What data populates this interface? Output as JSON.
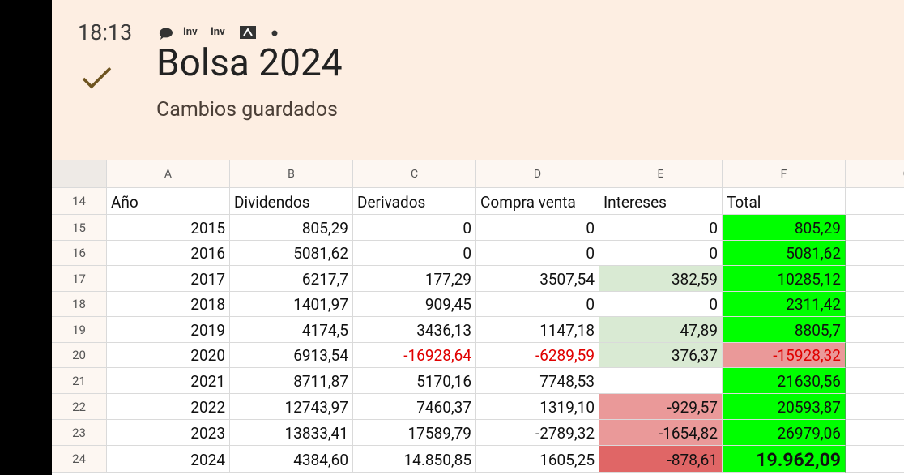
{
  "status": {
    "time": "18:13",
    "notifications": [
      "Inv",
      "Inv"
    ]
  },
  "header": {
    "title": "Bolsa 2024",
    "subtitle": "Cambios guardados"
  },
  "table": {
    "columns": [
      "A",
      "B",
      "C",
      "D",
      "E",
      "F",
      "G"
    ],
    "row_numbers": [
      "14",
      "15",
      "16",
      "17",
      "18",
      "19",
      "20",
      "21",
      "22",
      "23",
      "24"
    ],
    "rows": [
      [
        "Año",
        "Dividendos",
        "Derivados",
        "Compra venta",
        "Intereses",
        "Total"
      ],
      [
        "2015",
        "805,29",
        "0",
        "0",
        "0",
        "805,29"
      ],
      [
        "2016",
        "5081,62",
        "0",
        "0",
        "0",
        "5081,62"
      ],
      [
        "2017",
        "6217,7",
        "177,29",
        "3507,54",
        "382,59",
        "10285,12"
      ],
      [
        "2018",
        "1401,97",
        "909,45",
        "0",
        "0",
        "2311,42"
      ],
      [
        "2019",
        "4174,5",
        "3436,13",
        "1147,18",
        "47,89",
        "8805,7"
      ],
      [
        "2020",
        "6913,54",
        "-16928,64",
        "-6289,59",
        "376,37",
        "-15928,32"
      ],
      [
        "2021",
        "8711,87",
        "5170,16",
        "7748,53",
        null,
        "21630,56"
      ],
      [
        "2022",
        "12743,97",
        "7460,37",
        "1319,10",
        "-929,57",
        "20593,87"
      ],
      [
        "2023",
        "13833,41",
        "17589,79",
        "-2789,32",
        "-1654,82",
        "26979,06"
      ],
      [
        "2024",
        "4384,60",
        "14.850,85",
        "1605,25",
        "-878,61",
        "19.962,09"
      ]
    ]
  }
}
